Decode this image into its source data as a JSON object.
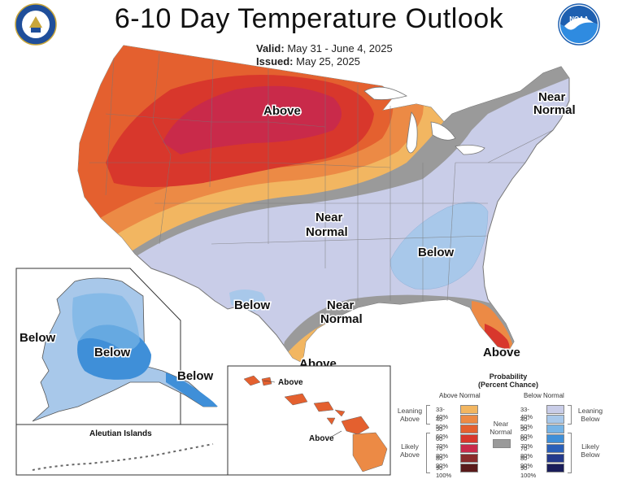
{
  "header": {
    "title": "6-10 Day Temperature Outlook",
    "valid_label": "Valid:",
    "valid_value": "May 31 - June 4, 2025",
    "issued_label": "Issued:",
    "issued_value": "May 25, 2025"
  },
  "logos": {
    "left": "department-of-commerce-seal",
    "right": "noaa-logo"
  },
  "map_labels": {
    "conus_above_north": "Above",
    "near_normal_northeast_line1": "Near",
    "near_normal_northeast_line2": "Normal",
    "near_normal_central_line1": "Near",
    "near_normal_central_line2": "Normal",
    "below_southeast": "Below",
    "below_southwest": "Below",
    "near_normal_gulf_line1": "Near",
    "near_normal_gulf_line2": "Normal",
    "above_gulf": "Above",
    "above_florida": "Above",
    "alaska_below_west": "Below",
    "alaska_below_center": "Below",
    "alaska_below_panhandle": "Below",
    "aleutian_islands": "Aleutian Islands",
    "hawaii_above_north": "Above",
    "hawaii_above_south": "Above"
  },
  "legend": {
    "title_line1": "Probability",
    "title_line2": "(Percent Chance)",
    "above_header": "Above Normal",
    "below_header": "Below Normal",
    "leaning_above_line1": "Leaning",
    "leaning_above_line2": "Above",
    "likely_above_line1": "Likely",
    "likely_above_line2": "Above",
    "leaning_below_line1": "Leaning",
    "leaning_below_line2": "Below",
    "likely_below_line1": "Likely",
    "likely_below_line2": "Below",
    "near_normal_line1": "Near",
    "near_normal_line2": "Normal",
    "above_levels": [
      {
        "range": "33-40%",
        "color": "#f2b661"
      },
      {
        "range": "40-50%",
        "color": "#ec8a45"
      },
      {
        "range": "50-60%",
        "color": "#e4602f"
      },
      {
        "range": "60-70%",
        "color": "#d8372c"
      },
      {
        "range": "70-80%",
        "color": "#c92a4a"
      },
      {
        "range": "80-90%",
        "color": "#8a2b2b"
      },
      {
        "range": "90-100%",
        "color": "#5a1a1a"
      }
    ],
    "below_levels": [
      {
        "range": "33-40%",
        "color": "#c9cde8"
      },
      {
        "range": "40-50%",
        "color": "#a8c8ea"
      },
      {
        "range": "50-60%",
        "color": "#77b4e6"
      },
      {
        "range": "60-70%",
        "color": "#3f8fd8"
      },
      {
        "range": "70-80%",
        "color": "#2a5fb8"
      },
      {
        "range": "80-90%",
        "color": "#243a8c"
      },
      {
        "range": "90-100%",
        "color": "#1a1d5a"
      }
    ],
    "near_normal_color": "#9a9a9a"
  }
}
